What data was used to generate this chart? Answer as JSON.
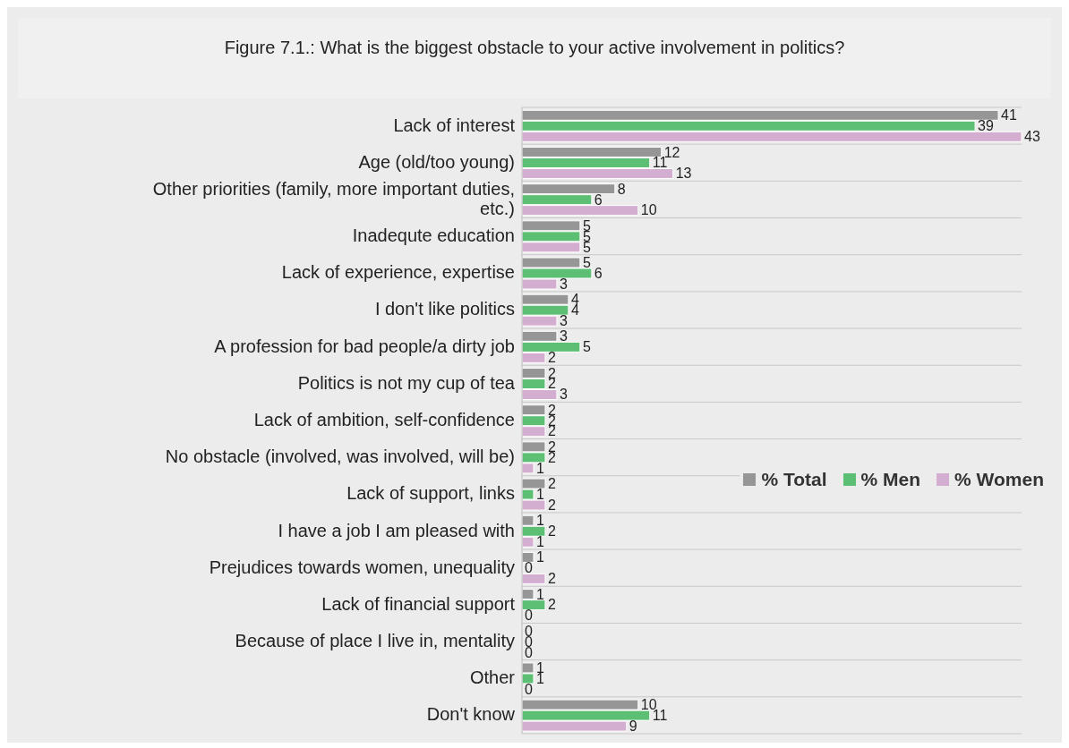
{
  "chart_data": {
    "type": "bar",
    "orientation": "horizontal",
    "title": "Figure 7.1.: What is the biggest obstacle to your active involvement in politics?",
    "categories": [
      "Lack of interest",
      "Age (old/too young)",
      "Other priorities (family, more important duties, etc.)",
      "Inadequte education",
      "Lack of experience, expertise",
      "I don't like politics",
      "A profession for bad people/a dirty job",
      "Politics is not my cup of tea",
      "Lack of ambition, self-confidence",
      "No obstacle (involved, was involved, will be)",
      "Lack of support, links",
      "I have a job I am pleased with",
      "Prejudices towards women, unequality",
      "Lack of financial support",
      "Because of place I live in, mentality",
      "Other",
      "Don't know"
    ],
    "series": [
      {
        "name": "% Total",
        "color": "#969696",
        "values": [
          41,
          12,
          8,
          5,
          5,
          4,
          3,
          2,
          2,
          2,
          2,
          1,
          1,
          1,
          0,
          1,
          10
        ]
      },
      {
        "name": "% Men",
        "color": "#5cbf74",
        "values": [
          39,
          11,
          6,
          5,
          6,
          4,
          5,
          2,
          2,
          2,
          1,
          2,
          0,
          2,
          0,
          1,
          11
        ]
      },
      {
        "name": "% Women",
        "color": "#d4aed0",
        "values": [
          43,
          13,
          10,
          5,
          3,
          3,
          2,
          3,
          2,
          1,
          2,
          1,
          2,
          0,
          0,
          0,
          9
        ]
      }
    ],
    "data_labels": true,
    "grid": "y",
    "legend": "right",
    "tick_labels": "y"
  }
}
